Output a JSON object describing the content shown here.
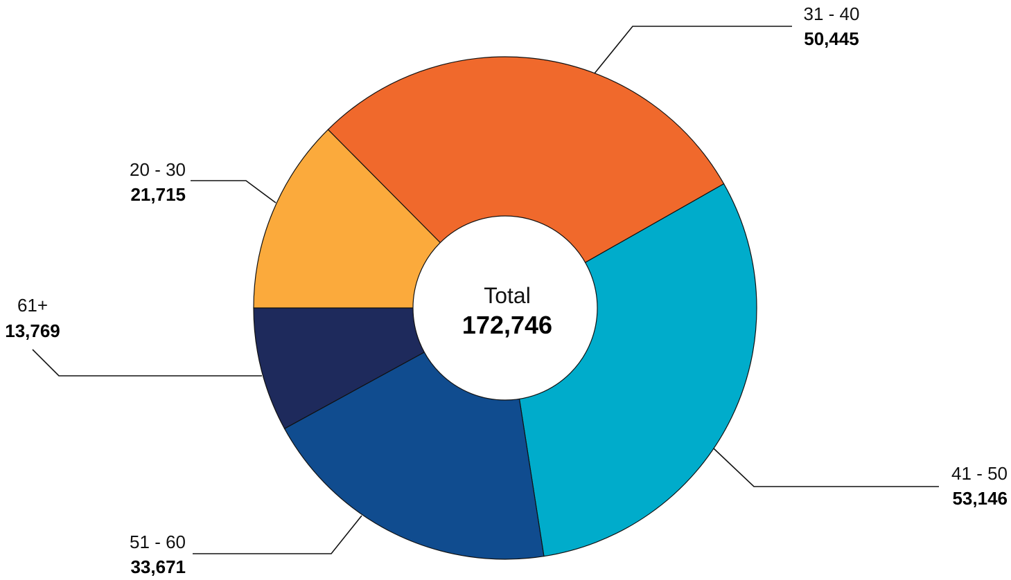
{
  "chart_data": {
    "type": "pie",
    "variant": "donut",
    "center_label": "Total",
    "center_value": "172,746",
    "start_angle": "9 o'clock, clockwise",
    "slices": [
      {
        "label": "20 - 30",
        "value": 21715,
        "value_text": "21,715",
        "color": "#FBAA3C"
      },
      {
        "label": "31 - 40",
        "value": 50445,
        "value_text": "50,445",
        "color": "#F0692C"
      },
      {
        "label": "41 - 50",
        "value": 53146,
        "value_text": "53,146",
        "color": "#00ACCB"
      },
      {
        "label": "51 - 60",
        "value": 33671,
        "value_text": "33,671",
        "color": "#104C8F"
      },
      {
        "label": "61+",
        "value": 13769,
        "value_text": "13,769",
        "color": "#1E2A5C"
      }
    ]
  }
}
